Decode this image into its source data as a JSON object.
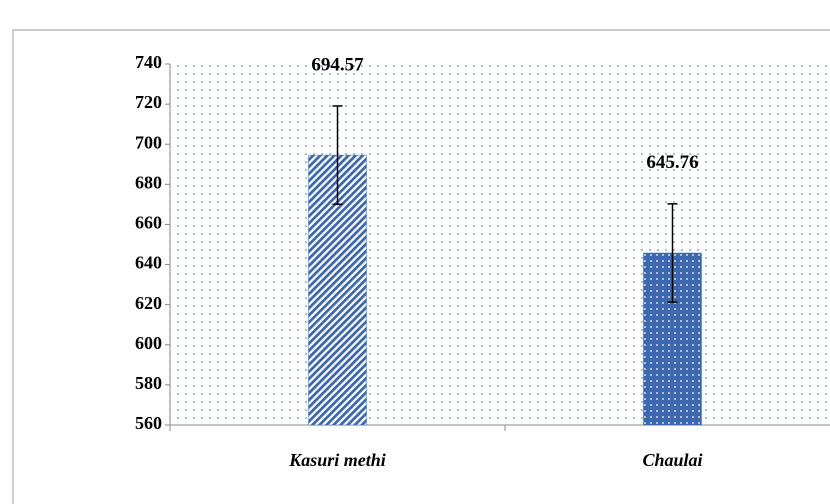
{
  "chart_data": {
    "type": "bar",
    "categories": [
      "Kasuri methi",
      "Chaulai"
    ],
    "values": [
      694.57,
      645.76
    ],
    "errors": [
      24.5,
      24.5
    ],
    "colors": [
      "#3d68ad",
      "#3d68ad"
    ],
    "ylim": [
      560,
      740
    ],
    "yticks": [
      560,
      580,
      600,
      620,
      640,
      660,
      680,
      700,
      720,
      740
    ],
    "grid": false
  }
}
